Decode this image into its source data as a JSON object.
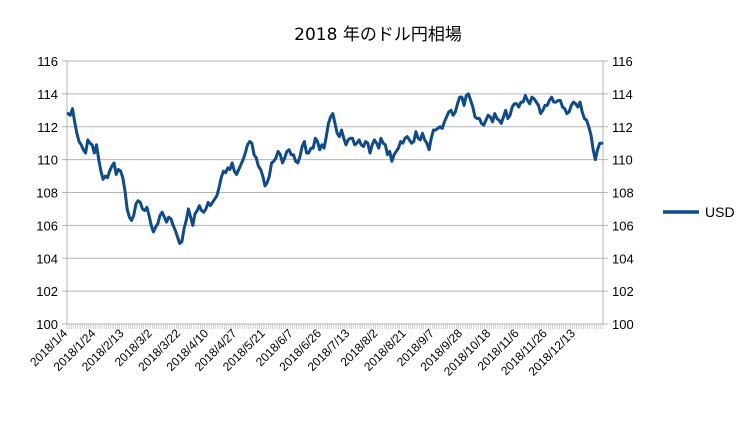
{
  "chart_data": {
    "type": "line",
    "title": "2018 年のドル円相場",
    "xlabel": "",
    "ylabel": "",
    "ylim": [
      100,
      116
    ],
    "yticks": [
      100,
      102,
      104,
      106,
      108,
      110,
      112,
      114,
      116
    ],
    "yaxes": "both",
    "grid": true,
    "legend_position": "right",
    "xticklabels": [
      "2018/1/4",
      "2018/1/24",
      "2018/2/13",
      "2018/3/2",
      "2018/3/22",
      "2018/4/10",
      "2018/4/27",
      "2018/5/21",
      "2018/6/7",
      "2018/6/26",
      "2018/7/13",
      "2018/8/2",
      "2018/8/21",
      "2018/9/7",
      "2018/9/28",
      "2018/10/18",
      "2018/11/6",
      "2018/11/26",
      "2018/12/13"
    ],
    "series": [
      {
        "name": "USD",
        "color": "#0f4a8a",
        "values": [
          112.8,
          112.7,
          113.1,
          112.3,
          111.6,
          111.1,
          110.9,
          110.6,
          110.4,
          111.2,
          111.0,
          110.9,
          110.4,
          110.9,
          110.0,
          109.3,
          108.8,
          109.0,
          108.9,
          109.3,
          109.6,
          109.8,
          109.1,
          109.4,
          109.3,
          108.9,
          108.1,
          107.0,
          106.5,
          106.3,
          106.6,
          107.3,
          107.5,
          107.4,
          107.0,
          106.9,
          107.1,
          106.6,
          106.0,
          105.6,
          105.9,
          106.1,
          106.6,
          106.8,
          106.5,
          106.2,
          106.5,
          106.4,
          106.0,
          105.7,
          105.3,
          104.9,
          105.0,
          105.8,
          106.3,
          107.0,
          106.5,
          106.0,
          106.7,
          106.9,
          107.2,
          106.9,
          106.8,
          107.0,
          107.4,
          107.2,
          107.4,
          107.6,
          107.8,
          108.3,
          108.9,
          109.3,
          109.2,
          109.5,
          109.4,
          109.8,
          109.3,
          109.1,
          109.4,
          109.7,
          110.0,
          110.4,
          110.9,
          111.1,
          111.0,
          110.3,
          110.1,
          109.6,
          109.4,
          109.0,
          108.4,
          108.6,
          109.0,
          109.8,
          109.9,
          110.1,
          110.5,
          110.3,
          109.8,
          110.1,
          110.5,
          110.6,
          110.3,
          110.3,
          109.9,
          109.8,
          110.2,
          110.8,
          111.1,
          110.4,
          110.4,
          110.7,
          110.7,
          111.3,
          111.1,
          110.6,
          110.9,
          110.7,
          111.4,
          112.2,
          112.6,
          112.8,
          112.2,
          111.6,
          111.4,
          111.8,
          111.3,
          110.9,
          111.2,
          111.3,
          111.3,
          110.9,
          111.0,
          111.2,
          110.9,
          110.8,
          111.1,
          111.0,
          110.4,
          110.9,
          111.2,
          111.0,
          110.7,
          111.3,
          111.0,
          110.9,
          110.3,
          110.5,
          109.9,
          110.3,
          110.5,
          110.7,
          111.1,
          111.0,
          111.3,
          111.4,
          111.2,
          111.0,
          111.1,
          111.7,
          111.3,
          111.2,
          111.6,
          111.2,
          111.0,
          110.6,
          111.3,
          111.8,
          111.8,
          111.9,
          112.0,
          111.9,
          112.3,
          112.6,
          112.9,
          113.0,
          112.7,
          112.9,
          113.4,
          113.8,
          113.8,
          113.3,
          113.9,
          114.0,
          113.6,
          113.2,
          112.6,
          112.5,
          112.5,
          112.2,
          112.1,
          112.4,
          112.7,
          112.6,
          112.3,
          112.8,
          112.5,
          112.4,
          112.2,
          112.6,
          113.0,
          112.5,
          112.7,
          113.2,
          113.4,
          113.4,
          113.2,
          113.5,
          113.5,
          113.9,
          113.6,
          113.4,
          113.8,
          113.7,
          113.5,
          113.3,
          112.8,
          113.0,
          113.3,
          113.3,
          113.6,
          113.8,
          113.5,
          113.5,
          113.6,
          113.6,
          113.2,
          113.1,
          112.8,
          112.9,
          113.3,
          113.5,
          113.4,
          113.2,
          113.5,
          112.9,
          112.5,
          112.4,
          112.0,
          111.5,
          110.6,
          110.0,
          110.6,
          111.0,
          111.0
        ]
      }
    ]
  }
}
